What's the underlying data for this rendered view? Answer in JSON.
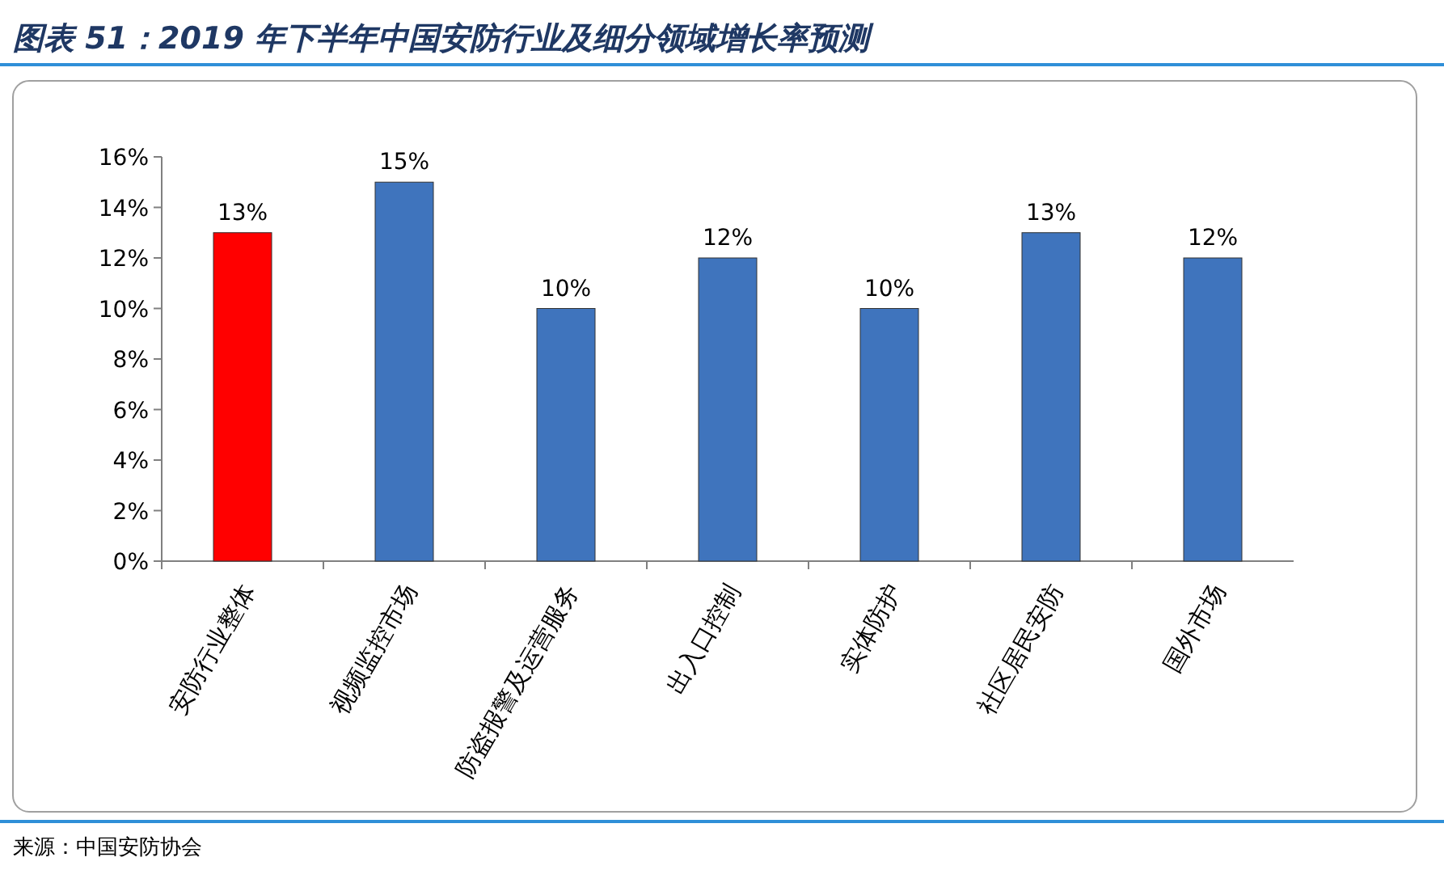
{
  "chart_data": {
    "type": "bar",
    "title": "图表 51：2019 年下半年中国安防行业及细分领域增长率预测",
    "categories": [
      "安防行业整体",
      "视频监控市场",
      "防盗报警及运营服务",
      "出入口控制",
      "实体防护",
      "社区居民安防",
      "国外市场"
    ],
    "values": [
      13,
      15,
      10,
      12,
      10,
      13,
      12
    ],
    "colors": [
      "#ff0000",
      "#3f74bd",
      "#3f74bd",
      "#3f74bd",
      "#3f74bd",
      "#3f74bd",
      "#3f74bd"
    ],
    "value_labels": [
      "13%",
      "15%",
      "10%",
      "12%",
      "10%",
      "13%",
      "12%"
    ],
    "ylim": [
      0,
      16
    ],
    "yticks": [
      {
        "value": 0,
        "label": "0%"
      },
      {
        "value": 2,
        "label": "2%"
      },
      {
        "value": 4,
        "label": "4%"
      },
      {
        "value": 6,
        "label": "6%"
      },
      {
        "value": 8,
        "label": "8%"
      },
      {
        "value": 10,
        "label": "10%"
      },
      {
        "value": 12,
        "label": "12%"
      },
      {
        "value": 14,
        "label": "14%"
      },
      {
        "value": 16,
        "label": "16%"
      }
    ],
    "annotations": [
      "来源：中国安防协会"
    ]
  }
}
